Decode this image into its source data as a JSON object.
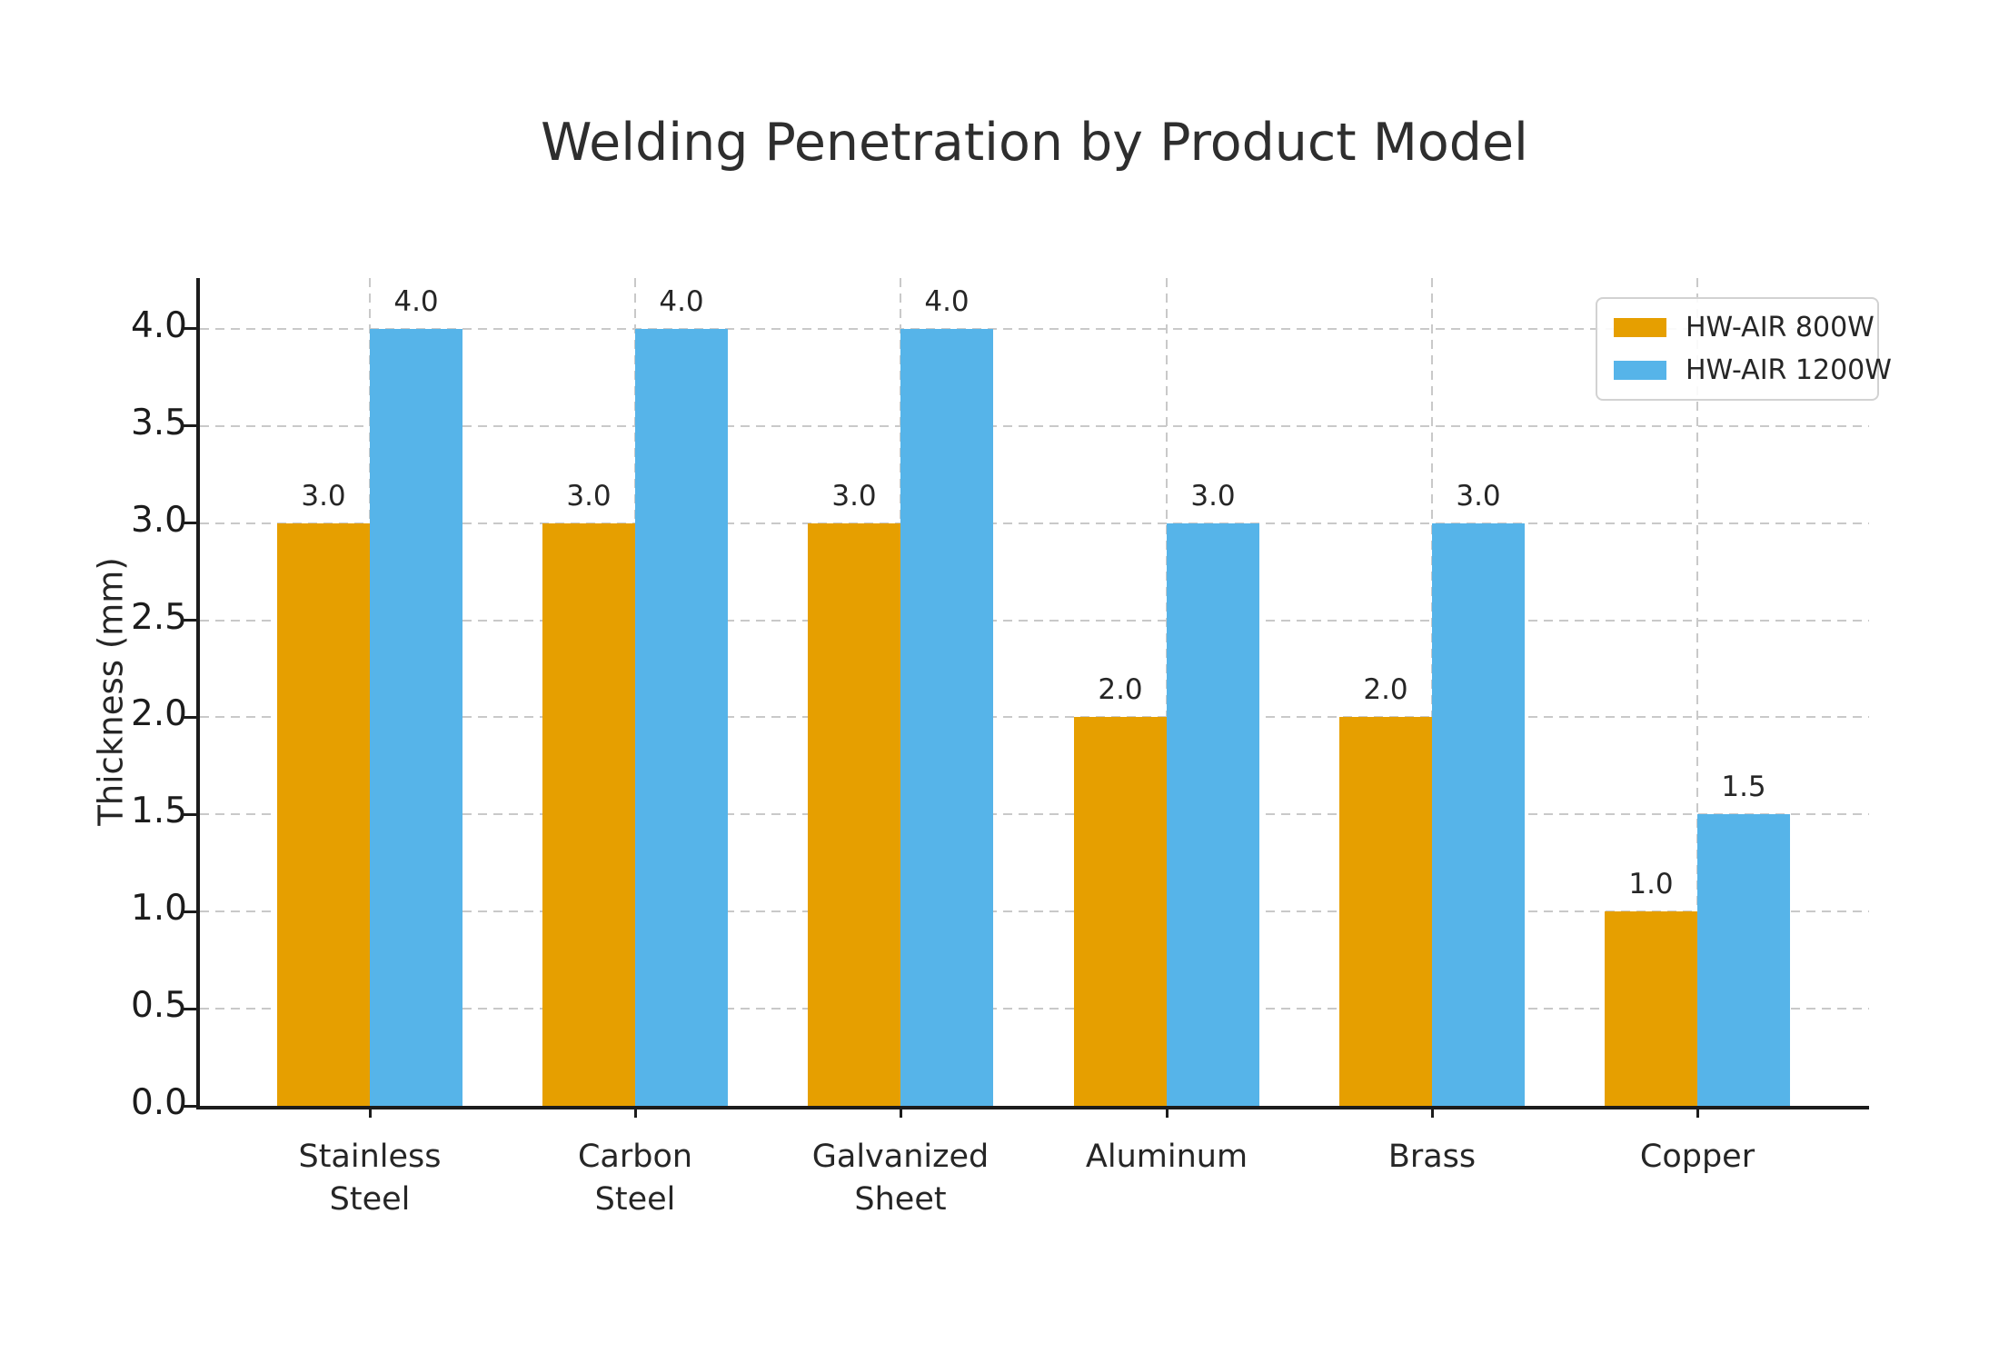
{
  "chart_data": {
    "type": "bar",
    "title": "Welding Penetration by Product Model",
    "ylabel": "Thickness (mm)",
    "xlabel": "",
    "categories": [
      "Stainless\nSteel",
      "Carbon\nSteel",
      "Galvanized\nSheet",
      "Aluminum",
      "Brass",
      "Copper"
    ],
    "series": [
      {
        "name": "HW-AIR 800W",
        "color": "#E69F00",
        "values": [
          3.0,
          3.0,
          3.0,
          2.0,
          2.0,
          1.0
        ],
        "labels": [
          "3.0",
          "3.0",
          "3.0",
          "2.0",
          "2.0",
          "1.0"
        ]
      },
      {
        "name": "HW-AIR 1200W",
        "color": "#56B4E9",
        "values": [
          4.0,
          4.0,
          4.0,
          3.0,
          3.0,
          1.5
        ],
        "labels": [
          "4.0",
          "4.0",
          "4.0",
          "3.0",
          "3.0",
          "1.5"
        ]
      }
    ],
    "yticks": [
      0.0,
      0.5,
      1.0,
      1.5,
      2.0,
      2.5,
      3.0,
      3.5,
      4.0
    ],
    "ytick_labels": [
      "0.0",
      "0.5",
      "1.0",
      "1.5",
      "2.0",
      "2.5",
      "3.0",
      "3.5",
      "4.0"
    ],
    "ylim": [
      0,
      4.25
    ],
    "grid": "dashed horizontal lines at each 0.5 step and dashed vertical lines at category centers",
    "legend_position": "upper right",
    "colors": {
      "bar_800w": "#E69F00",
      "bar_1200w": "#56B4E9",
      "gridline": "#c9c9c9",
      "axis": "#1c1c1c",
      "text": "#262626",
      "background": "#ffffff"
    }
  }
}
